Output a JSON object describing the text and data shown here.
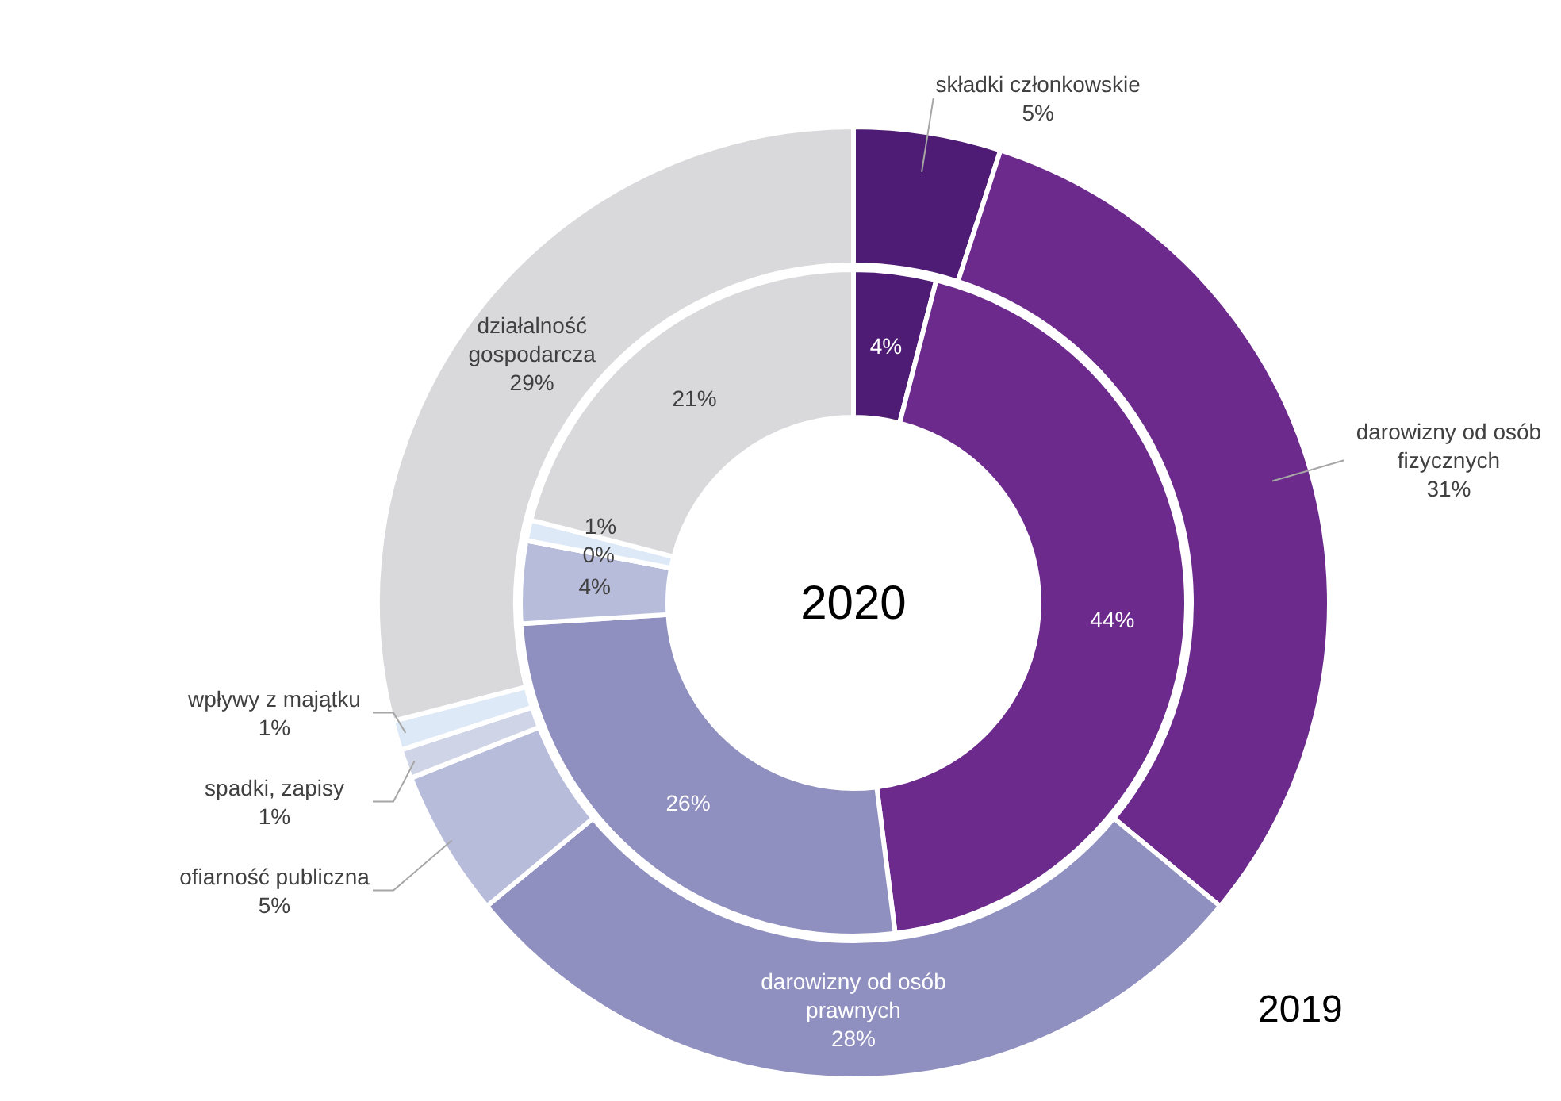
{
  "chart_data": {
    "type": "donut",
    "categories": [
      "składki członkowskie",
      "darowizny od osób fizycznych",
      "darowizny od osób prawnych",
      "ofiarność publiczna",
      "spadki, zapisy",
      "wpływy z majątku",
      "działalność gospodarcza"
    ],
    "colors": [
      "#4e1c74",
      "#6c2a8c",
      "#8f8fc0",
      "#b8bcdb",
      "#cfd5e6",
      "#dde9f7",
      "#d9d9db"
    ],
    "series": [
      {
        "name": "2019",
        "values": [
          5,
          31,
          28,
          5,
          1,
          1,
          29
        ],
        "value_labels": [
          "5%",
          "31%",
          "28%",
          "5%",
          "1%",
          "1%",
          "29%"
        ]
      },
      {
        "name": "2020",
        "values": [
          4,
          44,
          26,
          4,
          0,
          1,
          21
        ],
        "value_labels": [
          "4%",
          "44%",
          "26%",
          "4%",
          "0%",
          "1%",
          "21%"
        ]
      }
    ]
  }
}
